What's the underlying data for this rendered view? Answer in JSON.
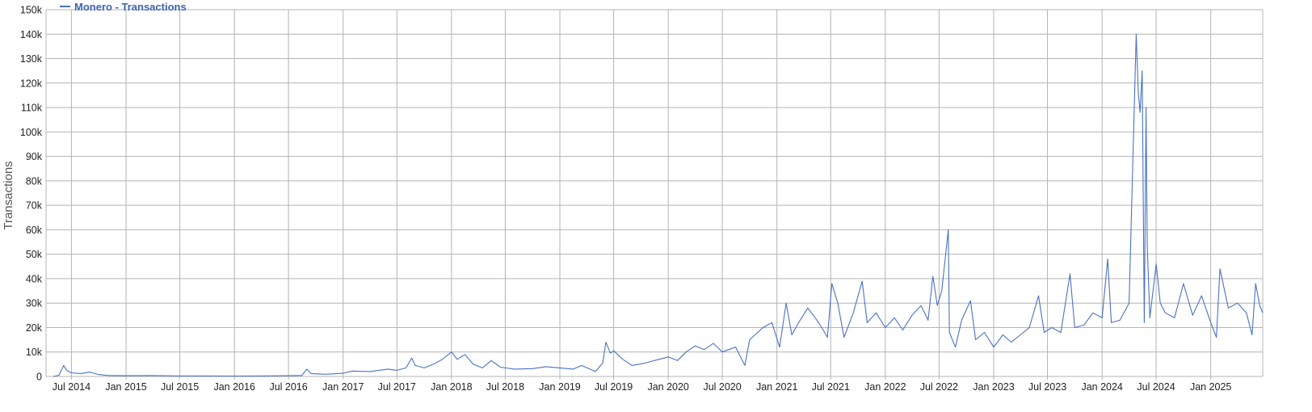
{
  "colors": {
    "series": "#4a72c4",
    "legend_text": "#3a64b4",
    "grid": "#b4b4b4",
    "axis_text": "#222222",
    "ylabel": "#555555"
  },
  "legend": {
    "label": "Monero - Transactions"
  },
  "chart_data": {
    "type": "line",
    "ylabel": "Transactions",
    "ylim": [
      0,
      150000
    ],
    "grid": true,
    "legend_position": "top-left",
    "y_ticks": [
      {
        "value": 150000,
        "label": "150k"
      },
      {
        "value": 140000,
        "label": "140k"
      },
      {
        "value": 130000,
        "label": "130k"
      },
      {
        "value": 120000,
        "label": "120k"
      },
      {
        "value": 110000,
        "label": "110k"
      },
      {
        "value": 100000,
        "label": "100k"
      },
      {
        "value": 90000,
        "label": "90k"
      },
      {
        "value": 80000,
        "label": "80k"
      },
      {
        "value": 70000,
        "label": "70k"
      },
      {
        "value": 60000,
        "label": "60k"
      },
      {
        "value": 50000,
        "label": "50k"
      },
      {
        "value": 40000,
        "label": "40k"
      },
      {
        "value": 30000,
        "label": "30k"
      },
      {
        "value": 20000,
        "label": "20k"
      },
      {
        "value": 10000,
        "label": "10k"
      },
      {
        "value": 0,
        "label": "0"
      }
    ],
    "x_ticks": [
      {
        "date": "2014-07-01",
        "label": "Jul 2014"
      },
      {
        "date": "2015-01-01",
        "label": "Jan 2015"
      },
      {
        "date": "2015-07-01",
        "label": "Jul 2015"
      },
      {
        "date": "2016-01-01",
        "label": "Jan 2016"
      },
      {
        "date": "2016-07-01",
        "label": "Jul 2016"
      },
      {
        "date": "2017-01-01",
        "label": "Jan 2017"
      },
      {
        "date": "2017-07-01",
        "label": "Jul 2017"
      },
      {
        "date": "2018-01-01",
        "label": "Jan 2018"
      },
      {
        "date": "2018-07-01",
        "label": "Jul 2018"
      },
      {
        "date": "2019-01-01",
        "label": "Jan 2019"
      },
      {
        "date": "2019-07-01",
        "label": "Jul 2019"
      },
      {
        "date": "2020-01-01",
        "label": "Jan 2020"
      },
      {
        "date": "2020-07-01",
        "label": "Jul 2020"
      },
      {
        "date": "2021-01-01",
        "label": "Jan 2021"
      },
      {
        "date": "2021-07-01",
        "label": "Jul 2021"
      },
      {
        "date": "2022-01-01",
        "label": "Jan 2022"
      },
      {
        "date": "2022-07-01",
        "label": "Jul 2022"
      },
      {
        "date": "2023-01-01",
        "label": "Jan 2023"
      },
      {
        "date": "2023-07-01",
        "label": "Jul 2023"
      },
      {
        "date": "2024-01-01",
        "label": "Jan 2024"
      },
      {
        "date": "2024-07-01",
        "label": "Jul 2024"
      },
      {
        "date": "2025-01-01",
        "label": "Jan 2025"
      }
    ],
    "series": [
      {
        "name": "Monero - Transactions",
        "points": [
          [
            "2014-05-01",
            0
          ],
          [
            "2014-05-20",
            500
          ],
          [
            "2014-06-05",
            4500
          ],
          [
            "2014-06-15",
            2500
          ],
          [
            "2014-07-01",
            1500
          ],
          [
            "2014-08-01",
            1200
          ],
          [
            "2014-09-01",
            1800
          ],
          [
            "2014-10-01",
            800
          ],
          [
            "2014-11-01",
            400
          ],
          [
            "2015-01-01",
            300
          ],
          [
            "2015-04-01",
            350
          ],
          [
            "2015-07-01",
            200
          ],
          [
            "2015-10-01",
            200
          ],
          [
            "2016-01-01",
            150
          ],
          [
            "2016-04-01",
            200
          ],
          [
            "2016-07-01",
            300
          ],
          [
            "2016-08-15",
            400
          ],
          [
            "2016-09-01",
            3000
          ],
          [
            "2016-09-15",
            1200
          ],
          [
            "2016-11-01",
            900
          ],
          [
            "2017-01-01",
            1300
          ],
          [
            "2017-02-01",
            2200
          ],
          [
            "2017-04-01",
            2000
          ],
          [
            "2017-06-01",
            3000
          ],
          [
            "2017-07-01",
            2500
          ],
          [
            "2017-08-01",
            3500
          ],
          [
            "2017-08-20",
            7500
          ],
          [
            "2017-09-01",
            4500
          ],
          [
            "2017-10-01",
            3500
          ],
          [
            "2017-11-01",
            5000
          ],
          [
            "2017-12-01",
            7000
          ],
          [
            "2018-01-01",
            10000
          ],
          [
            "2018-01-20",
            7000
          ],
          [
            "2018-02-15",
            9000
          ],
          [
            "2018-03-15",
            5000
          ],
          [
            "2018-04-15",
            3500
          ],
          [
            "2018-05-15",
            6500
          ],
          [
            "2018-06-15",
            3800
          ],
          [
            "2018-08-01",
            3000
          ],
          [
            "2018-10-01",
            3200
          ],
          [
            "2018-11-15",
            4000
          ],
          [
            "2019-01-01",
            3500
          ],
          [
            "2019-02-15",
            3000
          ],
          [
            "2019-03-15",
            4500
          ],
          [
            "2019-05-01",
            2000
          ],
          [
            "2019-05-25",
            5500
          ],
          [
            "2019-06-05",
            14000
          ],
          [
            "2019-06-20",
            9500
          ],
          [
            "2019-07-01",
            10500
          ],
          [
            "2019-08-01",
            7000
          ],
          [
            "2019-09-01",
            4500
          ],
          [
            "2019-10-15",
            5500
          ],
          [
            "2019-12-01",
            7000
          ],
          [
            "2020-01-01",
            8000
          ],
          [
            "2020-02-01",
            6500
          ],
          [
            "2020-03-01",
            10000
          ],
          [
            "2020-04-01",
            12500
          ],
          [
            "2020-05-01",
            11000
          ],
          [
            "2020-06-01",
            13500
          ],
          [
            "2020-07-01",
            10000
          ],
          [
            "2020-08-15",
            12000
          ],
          [
            "2020-09-15",
            4500
          ],
          [
            "2020-10-01",
            15000
          ],
          [
            "2020-11-15",
            20000
          ],
          [
            "2020-12-15",
            22000
          ],
          [
            "2021-01-10",
            12000
          ],
          [
            "2021-02-01",
            30000
          ],
          [
            "2021-02-20",
            17000
          ],
          [
            "2021-03-15",
            22000
          ],
          [
            "2021-04-15",
            28000
          ],
          [
            "2021-05-10",
            24000
          ],
          [
            "2021-06-01",
            20000
          ],
          [
            "2021-06-20",
            16000
          ],
          [
            "2021-07-05",
            38000
          ],
          [
            "2021-07-25",
            30000
          ],
          [
            "2021-08-15",
            16000
          ],
          [
            "2021-09-15",
            26000
          ],
          [
            "2021-10-15",
            39000
          ],
          [
            "2021-11-01",
            22000
          ],
          [
            "2021-12-01",
            26000
          ],
          [
            "2022-01-01",
            20000
          ],
          [
            "2022-02-01",
            24000
          ],
          [
            "2022-03-01",
            19000
          ],
          [
            "2022-04-01",
            25000
          ],
          [
            "2022-05-01",
            29000
          ],
          [
            "2022-05-25",
            23000
          ],
          [
            "2022-06-10",
            41000
          ],
          [
            "2022-06-25",
            29000
          ],
          [
            "2022-07-10",
            35000
          ],
          [
            "2022-08-01",
            60000
          ],
          [
            "2022-08-05",
            18000
          ],
          [
            "2022-08-25",
            12000
          ],
          [
            "2022-09-15",
            23000
          ],
          [
            "2022-10-15",
            31000
          ],
          [
            "2022-11-01",
            15000
          ],
          [
            "2022-12-01",
            18000
          ],
          [
            "2023-01-01",
            12000
          ],
          [
            "2023-02-01",
            17000
          ],
          [
            "2023-03-01",
            14000
          ],
          [
            "2023-04-01",
            17000
          ],
          [
            "2023-05-01",
            20000
          ],
          [
            "2023-06-01",
            33000
          ],
          [
            "2023-06-20",
            18000
          ],
          [
            "2023-07-15",
            20000
          ],
          [
            "2023-08-15",
            18000
          ],
          [
            "2023-09-15",
            42000
          ],
          [
            "2023-10-01",
            20000
          ],
          [
            "2023-11-01",
            21000
          ],
          [
            "2023-12-01",
            26000
          ],
          [
            "2024-01-01",
            24000
          ],
          [
            "2024-01-20",
            48000
          ],
          [
            "2024-02-01",
            22000
          ],
          [
            "2024-03-01",
            23000
          ],
          [
            "2024-04-01",
            30000
          ],
          [
            "2024-04-25",
            140000
          ],
          [
            "2024-05-02",
            116000
          ],
          [
            "2024-05-08",
            108000
          ],
          [
            "2024-05-15",
            125000
          ],
          [
            "2024-05-22",
            22000
          ],
          [
            "2024-05-28",
            110000
          ],
          [
            "2024-06-01",
            54000
          ],
          [
            "2024-06-10",
            24000
          ],
          [
            "2024-07-01",
            46000
          ],
          [
            "2024-07-15",
            30000
          ],
          [
            "2024-08-01",
            26000
          ],
          [
            "2024-09-01",
            24000
          ],
          [
            "2024-10-01",
            38000
          ],
          [
            "2024-11-01",
            25000
          ],
          [
            "2024-12-01",
            33000
          ],
          [
            "2025-01-01",
            22000
          ],
          [
            "2025-01-20",
            16000
          ],
          [
            "2025-02-01",
            44000
          ],
          [
            "2025-03-01",
            28000
          ],
          [
            "2025-04-01",
            30000
          ],
          [
            "2025-05-01",
            26000
          ],
          [
            "2025-05-20",
            17000
          ],
          [
            "2025-06-01",
            38000
          ],
          [
            "2025-06-15",
            29000
          ],
          [
            "2025-06-25",
            26000
          ]
        ]
      }
    ]
  }
}
